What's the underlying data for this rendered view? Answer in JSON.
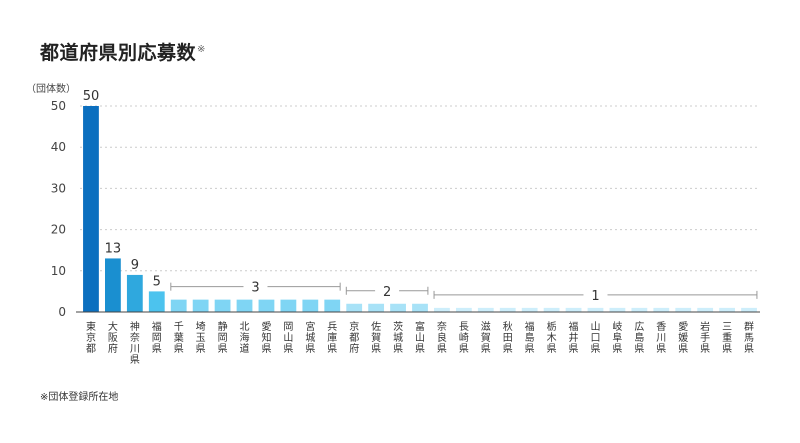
{
  "title": "都道府県別応募数",
  "title_mark": "※",
  "unit_label": "（団体数）",
  "footnote": "※団体登録所在地",
  "chart_data": {
    "type": "bar",
    "ylabel": "（団体数）",
    "ylim": [
      0,
      50
    ],
    "yticks": [
      0,
      10,
      20,
      30,
      40,
      50
    ],
    "grid": true,
    "categories": [
      "東京都",
      "大阪府",
      "神奈川県",
      "福岡県",
      "千葉県",
      "埼玉県",
      "静岡県",
      "北海道",
      "愛知県",
      "岡山県",
      "宮城県",
      "兵庫県",
      "京都府",
      "佐賀県",
      "茨城県",
      "富山県",
      "奈良県",
      "長崎県",
      "滋賀県",
      "秋田県",
      "福島県",
      "栃木県",
      "福井県",
      "山口県",
      "岐阜県",
      "広島県",
      "香川県",
      "愛媛県",
      "岩手県",
      "三重県",
      "群馬県"
    ],
    "values": [
      50,
      13,
      9,
      5,
      3,
      3,
      3,
      3,
      3,
      3,
      3,
      3,
      2,
      2,
      2,
      2,
      1,
      1,
      1,
      1,
      1,
      1,
      1,
      1,
      1,
      1,
      1,
      1,
      1,
      1,
      1
    ],
    "value_labels": [
      {
        "index": 0,
        "text": "50"
      },
      {
        "index": 1,
        "text": "13"
      },
      {
        "index": 2,
        "text": "9"
      },
      {
        "index": 3,
        "text": "5"
      }
    ],
    "group_labels": [
      {
        "from": 4,
        "to": 11,
        "text": "3"
      },
      {
        "from": 12,
        "to": 15,
        "text": "2"
      },
      {
        "from": 16,
        "to": 30,
        "text": "1"
      }
    ],
    "colors": {
      "50": "#0b6fbf",
      "13": "#1a8fd0",
      "9": "#2fa8de",
      "5": "#4cc3ee",
      "3": "#7fd5f4",
      "2": "#a8e2f7",
      "1": "#cdeefb",
      "axis": "#444444",
      "grid": "#cccccc",
      "bracket": "#999999"
    }
  }
}
